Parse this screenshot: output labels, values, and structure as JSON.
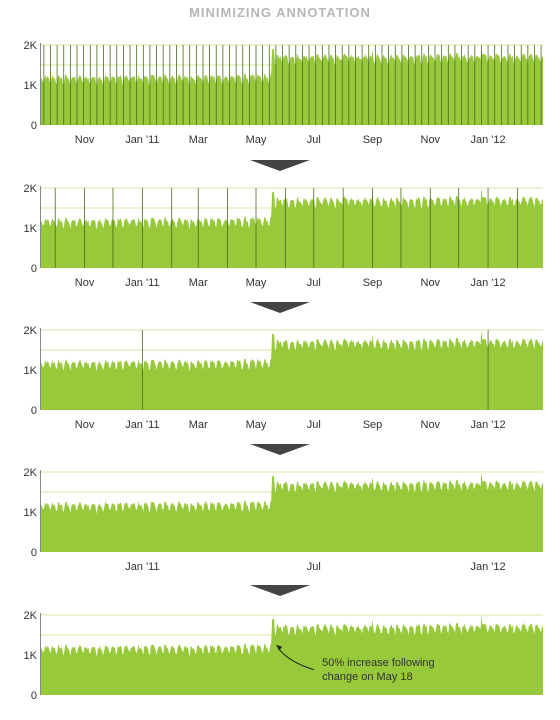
{
  "page": {
    "title": "MINIMIZING ANNOTATION"
  },
  "colors": {
    "area_fill": "#97c93a",
    "annotation_line": "#4a6b1a",
    "gridline": "#d8e7a6",
    "axis_text": "#333333",
    "arrow_fill": "#444444",
    "title_text": "#b7b7b7"
  },
  "chart_data": [
    {
      "type": "area",
      "x_range": [
        "2010-09-16",
        "2012-02-28"
      ],
      "ylim": [
        0,
        2000
      ],
      "y_ticks": [
        "0",
        "1K",
        "2K"
      ],
      "x_ticks": [
        "Nov",
        "Jan '11",
        "Mar",
        "May",
        "Jul",
        "Sep",
        "Nov",
        "Jan '12"
      ],
      "grid": "horizontal at 1.5K and 2K",
      "annotation_lines": "weekly (every Sunday)",
      "series": [
        {
          "x": [
            "2010-09",
            "2010-10",
            "2010-11",
            "2010-12",
            "2011-01",
            "2011-02",
            "2011-03",
            "2011-04",
            "2011-05 (to May 17)",
            "2011-05 (from May 18)",
            "2011-06",
            "2011-07",
            "2011-08",
            "2011-09",
            "2011-10",
            "2011-11",
            "2011-12",
            "2012-01",
            "2012-02"
          ],
          "y": [
            1150,
            1180,
            1170,
            1150,
            1160,
            1170,
            1150,
            1120,
            1100,
            1680,
            1600,
            1620,
            1640,
            1650,
            1620,
            1630,
            1660,
            1680,
            1690
          ]
        }
      ]
    },
    {
      "type": "area",
      "x_range": [
        "2010-09-16",
        "2012-02-28"
      ],
      "ylim": [
        0,
        2000
      ],
      "y_ticks": [
        "0",
        "1K",
        "2K"
      ],
      "x_ticks": [
        "Nov",
        "Jan '11",
        "Mar",
        "May",
        "Jul",
        "Sep",
        "Nov",
        "Jan '12"
      ],
      "grid": "horizontal at 1.5K and 2K",
      "annotation_lines": "monthly (first of month)"
    },
    {
      "type": "area",
      "x_range": [
        "2010-09-16",
        "2012-02-28"
      ],
      "ylim": [
        0,
        2000
      ],
      "y_ticks": [
        "0",
        "1K",
        "2K"
      ],
      "x_ticks": [
        "Nov",
        "Jan '11",
        "Mar",
        "May",
        "Jul",
        "Sep",
        "Nov",
        "Jan '12"
      ],
      "grid": "horizontal at 1.5K and 2K",
      "annotation_lines": "yearly (Jan 1)"
    },
    {
      "type": "area",
      "x_range": [
        "2010-09-16",
        "2012-02-28"
      ],
      "ylim": [
        0,
        2000
      ],
      "y_ticks": [
        "0",
        "1K",
        "2K"
      ],
      "x_ticks": [
        "Jan '11",
        "Jul",
        "Jan '12"
      ],
      "grid": "horizontal at 1.5K and 2K",
      "annotation_lines": "none"
    },
    {
      "type": "area",
      "x_range": [
        "2010-09-16",
        "2012-02-28"
      ],
      "ylim": [
        0,
        2000
      ],
      "y_ticks": [
        "0",
        "1K",
        "2K"
      ],
      "x_ticks": [],
      "grid": "horizontal at 1.5K and 2K",
      "annotation_lines": "none",
      "annotation": {
        "date": "2011-05-18",
        "text_line1": "50% increase following",
        "text_line2": "change on May 18"
      }
    }
  ]
}
